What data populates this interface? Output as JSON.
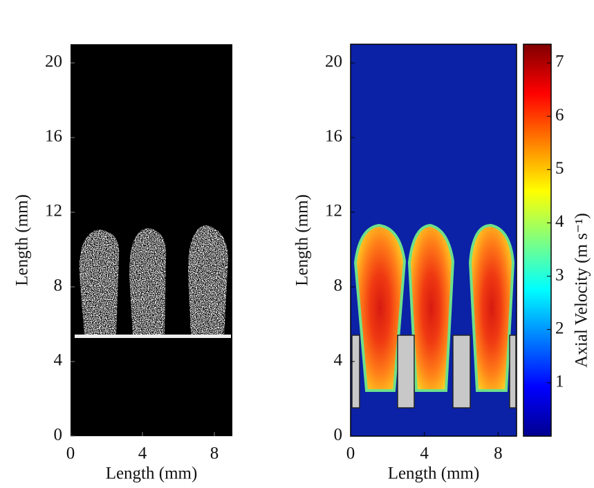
{
  "chart_data": [
    {
      "type": "image",
      "xlabel": "Length (mm)",
      "ylabel": "Length (mm)",
      "xlim": [
        0,
        9
      ],
      "ylim": [
        0,
        21
      ],
      "xticks": [
        0,
        4,
        8
      ],
      "yticks": [
        0,
        4,
        8,
        12,
        16,
        20
      ]
    },
    {
      "type": "heatmap",
      "xlabel": "Length (mm)",
      "ylabel": "Length (mm)",
      "xlim": [
        0,
        9
      ],
      "ylim": [
        0,
        21
      ],
      "xticks": [
        0,
        4,
        8
      ],
      "yticks": [
        0,
        4,
        8,
        12,
        16,
        20
      ],
      "colormap": "jet",
      "colorbar": {
        "label": "Axial Velocity (m s⁻¹)",
        "lim": [
          0,
          7.35
        ],
        "ticks": [
          1,
          2,
          3,
          4,
          5,
          6,
          7
        ]
      }
    }
  ]
}
